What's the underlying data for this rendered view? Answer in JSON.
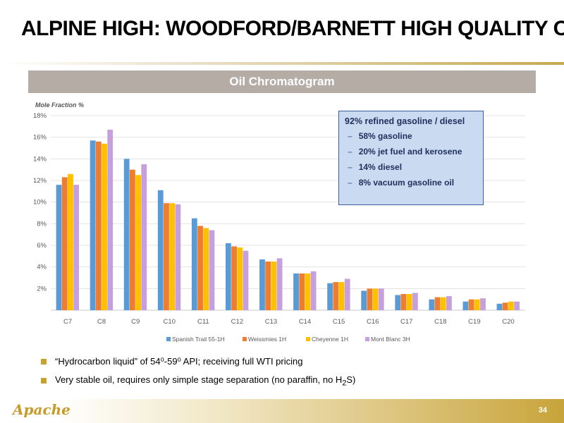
{
  "title": "ALPINE HIGH: WOODFORD/BARNETT HIGH QUALITY OIL",
  "banner": "Oil Chromatogram",
  "callout": {
    "heading": "92% refined gasoline / diesel",
    "items": [
      "58% gasoline",
      "20% jet fuel and kerosene",
      "14% diesel",
      "8% vacuum gasoline oil"
    ]
  },
  "bullets": {
    "b1": "“Hydrocarbon liquid” of 54⁰-59⁰ API; receiving full WTI pricing",
    "b2_prefix": "Very stable oil, requires only simple stage separation (no paraffin, no H",
    "b2_sub": "2",
    "b2_suffix": "S)"
  },
  "logo": "Apache",
  "page_number": "34",
  "chart_data": {
    "type": "bar",
    "ylabel": "Mole Fraction %",
    "ylim": [
      0,
      18
    ],
    "yticks": [
      "2%",
      "4%",
      "6%",
      "8%",
      "10%",
      "12%",
      "14%",
      "16%",
      "18%"
    ],
    "categories": [
      "C7",
      "C8",
      "C9",
      "C10",
      "C11",
      "C12",
      "C13",
      "C14",
      "C15",
      "C16",
      "C17",
      "C18",
      "C19",
      "C20"
    ],
    "grid": true,
    "legend": "bottom",
    "series": [
      {
        "name": "Spanish Trail 55-1H",
        "color": "#5b9bd5",
        "values": [
          11.6,
          15.7,
          14.0,
          11.1,
          8.5,
          6.2,
          4.7,
          3.4,
          2.5,
          1.8,
          1.4,
          1.0,
          0.8,
          0.6
        ]
      },
      {
        "name": "Weissmies 1H",
        "color": "#ed7d31",
        "values": [
          12.3,
          15.6,
          13.0,
          9.9,
          7.8,
          5.9,
          4.5,
          3.4,
          2.6,
          2.0,
          1.5,
          1.2,
          1.0,
          0.7
        ]
      },
      {
        "name": "Cheyenne 1H",
        "color": "#ffc000",
        "values": [
          12.6,
          15.4,
          12.5,
          9.9,
          7.6,
          5.8,
          4.5,
          3.4,
          2.6,
          2.0,
          1.5,
          1.2,
          1.0,
          0.8
        ]
      },
      {
        "name": "Mont Blanc 3H",
        "color": "#c5a0dd",
        "values": [
          11.6,
          16.7,
          13.5,
          9.8,
          7.4,
          5.5,
          4.8,
          3.6,
          2.9,
          2.0,
          1.6,
          1.3,
          1.1,
          0.8
        ]
      }
    ]
  }
}
